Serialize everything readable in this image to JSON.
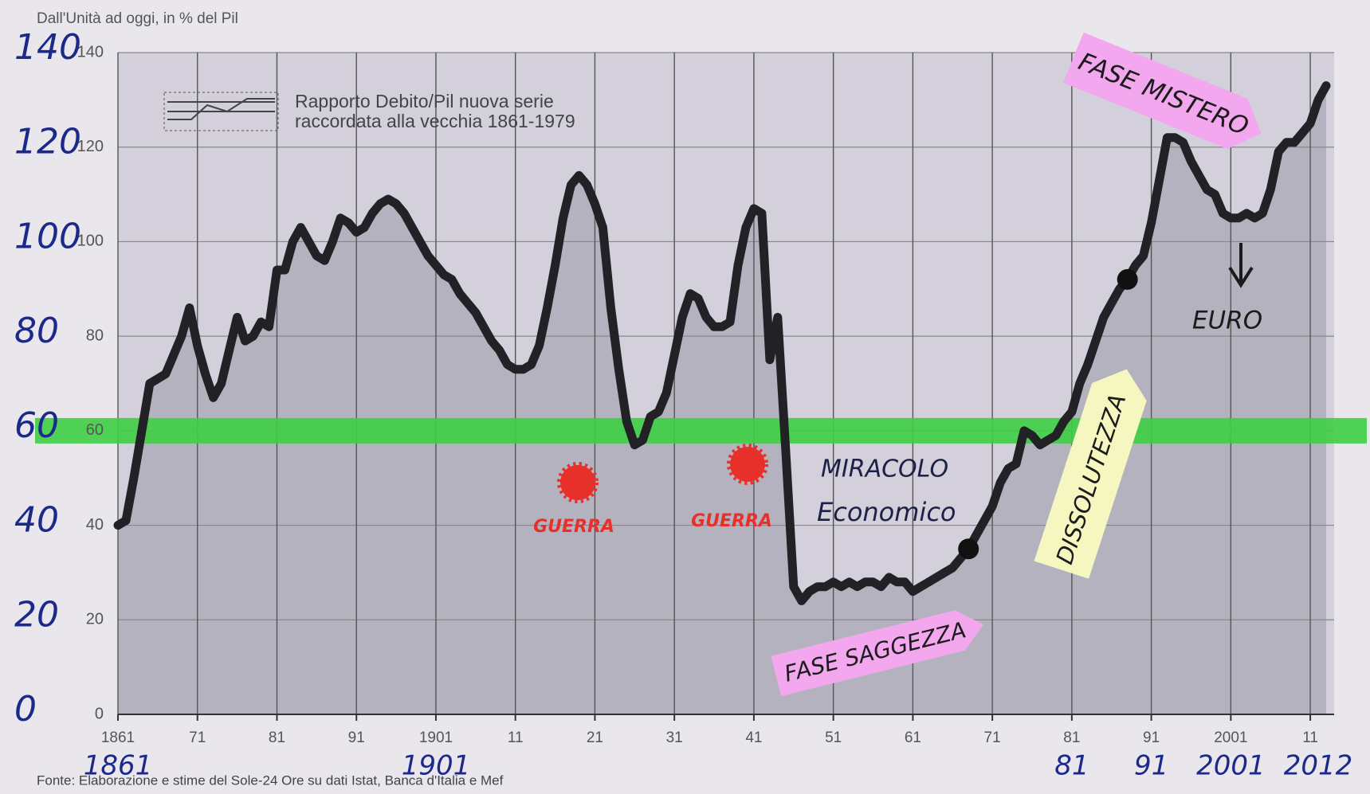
{
  "chart_data": {
    "type": "area",
    "title": "Dall'Unità ad oggi, in % del Pil",
    "legend_lines": [
      "Rapporto Debito/Pil nuova serie",
      "raccordata alla vecchia 1861-1979"
    ],
    "source": "Fonte: Elaborazione e stime del Sole-24 Ore su dati Istat, Banca d'Italia e Mef",
    "x": [
      1861,
      1862,
      1863,
      1864,
      1865,
      1866,
      1867,
      1868,
      1869,
      1870,
      1871,
      1872,
      1873,
      1874,
      1875,
      1876,
      1877,
      1878,
      1879,
      1880,
      1881,
      1882,
      1883,
      1884,
      1885,
      1886,
      1887,
      1888,
      1889,
      1890,
      1891,
      1892,
      1893,
      1894,
      1895,
      1896,
      1897,
      1898,
      1899,
      1900,
      1901,
      1902,
      1903,
      1904,
      1905,
      1906,
      1907,
      1908,
      1909,
      1910,
      1911,
      1912,
      1913,
      1914,
      1915,
      1916,
      1917,
      1918,
      1919,
      1920,
      1921,
      1922,
      1923,
      1924,
      1925,
      1926,
      1927,
      1928,
      1929,
      1930,
      1931,
      1932,
      1933,
      1934,
      1935,
      1936,
      1937,
      1938,
      1939,
      1940,
      1941,
      1942,
      1943,
      1944,
      1945,
      1946,
      1947,
      1948,
      1949,
      1950,
      1951,
      1952,
      1953,
      1954,
      1955,
      1956,
      1957,
      1958,
      1959,
      1960,
      1961,
      1962,
      1963,
      1964,
      1965,
      1966,
      1967,
      1968,
      1969,
      1970,
      1971,
      1972,
      1973,
      1974,
      1975,
      1976,
      1977,
      1978,
      1979,
      1980,
      1981,
      1982,
      1983,
      1984,
      1985,
      1986,
      1987,
      1988,
      1989,
      1990,
      1991,
      1992,
      1993,
      1994,
      1995,
      1996,
      1997,
      1998,
      1999,
      2000,
      2001,
      2002,
      2003,
      2004,
      2005,
      2006,
      2007,
      2008,
      2009,
      2010,
      2011,
      2012,
      2013
    ],
    "series": [
      {
        "color": "#222226",
        "fill": "#b5b2bf",
        "values": [
          40,
          41,
          50,
          60,
          70,
          71,
          72,
          76,
          80,
          86,
          78,
          72,
          67,
          70,
          77,
          84,
          79,
          80,
          83,
          82,
          94,
          94,
          100,
          103,
          100,
          97,
          96,
          100,
          105,
          104,
          102,
          103,
          106,
          108,
          109,
          108,
          106,
          103,
          100,
          97,
          95,
          93,
          92,
          89,
          87,
          85,
          82,
          79,
          77,
          74,
          73,
          73,
          74,
          78,
          86,
          95,
          105,
          112,
          114,
          112,
          108,
          103,
          86,
          73,
          62,
          57,
          58,
          63,
          64,
          68,
          76,
          84,
          89,
          88,
          84,
          82,
          82,
          83,
          95,
          103,
          107,
          106,
          75,
          84,
          56,
          27,
          24,
          26,
          27,
          27,
          28,
          27,
          28,
          27,
          28,
          28,
          27,
          29,
          28,
          28,
          26,
          27,
          28,
          29,
          30,
          31,
          33,
          35,
          38,
          41,
          44,
          49,
          52,
          53,
          60,
          59,
          57,
          58,
          59,
          62,
          64,
          70,
          74,
          79,
          84,
          87,
          90,
          92,
          95,
          97,
          104,
          113,
          122,
          122,
          121,
          117,
          114,
          111,
          110,
          106,
          105,
          105,
          106,
          105,
          106,
          111,
          119,
          121,
          121,
          123,
          125,
          130,
          133
        ]
      }
    ],
    "xlim": [
      1861,
      2014
    ],
    "ylim": [
      0,
      140
    ],
    "xticks": [
      1861,
      {
        "value": 1871,
        "label": "71"
      },
      {
        "value": 1881,
        "label": "81"
      },
      {
        "value": 1891,
        "label": "91"
      },
      1901,
      {
        "value": 1911,
        "label": "11"
      },
      {
        "value": 1921,
        "label": "21"
      },
      {
        "value": 1931,
        "label": "31"
      },
      {
        "value": 1941,
        "label": "41"
      },
      {
        "value": 1951,
        "label": "51"
      },
      {
        "value": 1961,
        "label": "61"
      },
      {
        "value": 1971,
        "label": "71"
      },
      {
        "value": 1981,
        "label": "81"
      },
      {
        "value": 1991,
        "label": "91"
      },
      2001,
      {
        "value": 2011,
        "label": "11"
      }
    ],
    "yticks": [
      0,
      20,
      40,
      60,
      80,
      100,
      120,
      140
    ],
    "handwritten_xticks": [
      1861,
      1901,
      {
        "value": 1981,
        "label": "81"
      },
      {
        "value": 1991,
        "label": "91"
      },
      2001,
      2012
    ],
    "grid": true,
    "reference_line": {
      "value": 60,
      "color": "#3fcf45"
    },
    "highlight_points": [
      {
        "x": 1968,
        "y": 35
      },
      {
        "x": 1988,
        "y": 92
      }
    ],
    "annotations": [
      "GUERRA",
      "GUERRA",
      "MIRACOLO",
      "Economico",
      "FASE SAGGEZZA",
      "DISSOLUTEZZA",
      "FASE MISTERO",
      "EURO"
    ]
  }
}
